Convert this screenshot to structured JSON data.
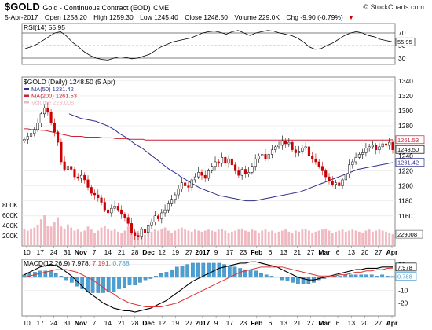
{
  "header": {
    "symbol": "$GOLD",
    "name": "Gold - Continuous Contract (EOD)",
    "exchange": "CME",
    "date": "5-Apr-2017",
    "open": "Open 1258.20",
    "high": "High 1259.30",
    "low": "Low 1245.40",
    "close": "Close 1248.50",
    "volume": "Volume 229.0K",
    "chg": "Chg -9.90 (-0.79%)",
    "chg_arrow": "▼",
    "logo": "© StockCharts.com"
  },
  "colors": {
    "up": "#22aa22",
    "down": "#cc0000",
    "ma50": "#2e2e8f",
    "ma200": "#cc2233",
    "volume": "#f0b8c0",
    "histogram": "#4a9fd4",
    "macd": "#000000",
    "signal": "#dd3333",
    "rsi": "#000000"
  },
  "chart_data": [
    {
      "type": "line",
      "title": "RSI(14) 55.95",
      "y_ticks": [
        30,
        50,
        70
      ],
      "ylim": [
        20,
        85
      ],
      "current_value_label": "55.95",
      "x_index_start": 0,
      "values": [
        45,
        48,
        52,
        58,
        64,
        70,
        72,
        65,
        55,
        48,
        40,
        34,
        30,
        28,
        27,
        30,
        32,
        31,
        29,
        30,
        33,
        36,
        42,
        48,
        52,
        56,
        58,
        60,
        62,
        66,
        70,
        72,
        73,
        71,
        68,
        72,
        74,
        70,
        66,
        70,
        72,
        74,
        73,
        70,
        68,
        66,
        62,
        56,
        48,
        44,
        45,
        50,
        54,
        60,
        66,
        70,
        72,
        70,
        66,
        64,
        60,
        58,
        56
      ]
    },
    {
      "type": "candlestick",
      "title": "$GOLD (Daily) 1248.50 (5 Apr)",
      "legend": [
        {
          "label": "MA(50) 1231.42",
          "color": "#2e2e8f"
        },
        {
          "label": "MA(200) 1261.53",
          "color": "#cc2233"
        },
        {
          "label": "Volume 229,008",
          "color": "#f0b8c0"
        }
      ],
      "y_ticks": [
        1160,
        1180,
        1200,
        1220,
        1240,
        1260,
        1280,
        1300,
        1320,
        1340
      ],
      "ylim": [
        1120,
        1345
      ],
      "price_tags": [
        {
          "label": "1261.53",
          "value": 1261.53,
          "color": "#cc2233"
        },
        {
          "label": "1248.50",
          "value": 1248.5,
          "color": "#000000"
        },
        {
          "label": "1231.42",
          "value": 1231.42,
          "color": "#2e2e8f"
        }
      ],
      "volume_ticks": [
        "800K",
        "600K",
        "400K",
        "200K"
      ],
      "volume_tick_values": [
        800,
        600,
        400,
        200
      ],
      "volume_current_label": "229008",
      "volume_max": 1000,
      "closes": [
        1262,
        1266,
        1270,
        1275,
        1284,
        1296,
        1304,
        1298,
        1284,
        1272,
        1258,
        1232,
        1222,
        1226,
        1222,
        1212,
        1210,
        1214,
        1208,
        1198,
        1190,
        1188,
        1184,
        1178,
        1168,
        1164,
        1170,
        1173,
        1168,
        1162,
        1158,
        1150,
        1138,
        1134,
        1133,
        1142,
        1138,
        1148,
        1152,
        1160,
        1156,
        1164,
        1168,
        1176,
        1182,
        1188,
        1196,
        1204,
        1200,
        1198,
        1208,
        1212,
        1218,
        1214,
        1210,
        1220,
        1226,
        1232,
        1230,
        1238,
        1230,
        1236,
        1228,
        1220,
        1214,
        1222,
        1216,
        1218,
        1226,
        1236,
        1240,
        1242,
        1236,
        1242,
        1248,
        1252,
        1254,
        1260,
        1256,
        1258,
        1248,
        1244,
        1246,
        1250,
        1252,
        1240,
        1236,
        1232,
        1226,
        1220,
        1212,
        1206,
        1202,
        1204,
        1200,
        1208,
        1216,
        1228,
        1232,
        1238,
        1242,
        1244,
        1250,
        1252,
        1254,
        1248,
        1252,
        1256,
        1254,
        1258,
        1248
      ],
      "ma50": [
        1296,
        1294,
        1292,
        1290,
        1289,
        1288,
        1287,
        1286,
        1284,
        1282,
        1280,
        1277,
        1274,
        1270,
        1267,
        1264,
        1260,
        1256,
        1253,
        1250,
        1246,
        1242,
        1238,
        1234,
        1230,
        1226,
        1222,
        1219,
        1216,
        1212,
        1209,
        1206,
        1203,
        1200,
        1197,
        1195,
        1193,
        1191,
        1189,
        1187,
        1186,
        1185,
        1184,
        1183,
        1182,
        1181,
        1180,
        1180,
        1180,
        1181,
        1182,
        1183,
        1184,
        1185,
        1186,
        1187,
        1188,
        1189,
        1190,
        1191,
        1192,
        1194,
        1196,
        1198,
        1200,
        1202,
        1204,
        1206,
        1208,
        1210,
        1212,
        1214,
        1216,
        1218,
        1220,
        1222,
        1223,
        1224,
        1225,
        1226,
        1227,
        1228,
        1229,
        1230,
        1231
      ],
      "ma200": [
        1276,
        1276,
        1275,
        1275,
        1275,
        1274,
        1274,
        1273,
        1272,
        1271,
        1270,
        1269,
        1268,
        1267,
        1266,
        1266,
        1266,
        1266,
        1265,
        1265,
        1265,
        1265,
        1265,
        1264,
        1264,
        1264,
        1264,
        1263,
        1263,
        1263,
        1263,
        1262,
        1262,
        1262,
        1262,
        1262,
        1261,
        1261,
        1261,
        1261,
        1261,
        1261,
        1261,
        1261,
        1261,
        1261,
        1261,
        1261,
        1261,
        1261,
        1261,
        1261,
        1261,
        1261,
        1261,
        1261,
        1261,
        1261,
        1261,
        1261,
        1261,
        1261,
        1261,
        1261,
        1261,
        1261,
        1261,
        1261,
        1261,
        1261,
        1261,
        1261,
        1261,
        1261,
        1261,
        1261,
        1261,
        1261,
        1261,
        1261,
        1261,
        1261,
        1261,
        1261,
        1261,
        1261,
        1261,
        1261,
        1261,
        1261,
        1261,
        1261,
        1261,
        1261,
        1261,
        1261,
        1261,
        1261,
        1261,
        1261,
        1261,
        1261,
        1261,
        1261,
        1261,
        1261,
        1261,
        1261,
        1261,
        1261.53
      ],
      "volume": [
        330,
        300,
        340,
        360,
        420,
        520,
        600,
        400,
        380,
        460,
        560,
        380,
        340,
        420,
        360,
        300,
        320,
        280,
        300,
        380,
        320,
        260,
        300,
        360,
        400,
        340,
        300,
        320,
        280,
        260,
        300,
        380,
        320,
        300,
        260,
        200,
        220,
        300,
        280,
        320,
        300,
        340,
        360,
        300,
        260,
        300,
        340,
        360,
        320,
        300,
        280,
        320,
        300,
        280,
        300,
        320,
        300,
        280,
        320,
        340,
        300,
        260,
        280,
        300,
        320,
        340,
        300,
        280,
        320,
        300,
        260,
        300,
        320,
        280,
        300,
        260,
        280,
        300,
        320,
        280,
        260,
        300,
        280,
        320,
        340,
        300,
        260,
        280,
        300,
        320,
        340,
        300,
        260,
        280,
        300,
        320,
        280,
        300,
        320,
        300,
        280,
        260,
        300,
        320,
        280,
        300,
        320,
        300,
        280,
        260,
        229
      ]
    },
    {
      "type": "bar",
      "categories": [
        "10",
        "17",
        "24",
        "31",
        "Nov",
        "7",
        "14",
        "21",
        "28",
        "Dec",
        "12",
        "19",
        "27",
        "2017",
        "9",
        "17",
        "23",
        "Feb",
        "6",
        "13",
        "21",
        "27",
        "Mar",
        "6",
        "13",
        "20",
        "27",
        "Apr"
      ],
      "title": "MACD(12,26,9) 7.978, 7.191, 0.788",
      "legend": [
        {
          "label": "MACD(12,26,9) 7.978,",
          "color": "#000000"
        },
        {
          "label": "7.191,",
          "color": "#dd3333"
        },
        {
          "label": "0.788",
          "color": "#4a9fd4"
        }
      ],
      "y_ticks": [
        -20,
        -10,
        0,
        10
      ],
      "ylim": [
        -30,
        14
      ],
      "tags": [
        {
          "label": "7.978",
          "value": 7.978,
          "color": "#000000"
        },
        {
          "label": "0.788",
          "value": 0.788,
          "color": "#4a9fd4"
        }
      ],
      "macd": [
        2,
        4,
        6,
        8,
        9,
        10,
        9,
        7,
        4,
        1,
        -3,
        -7,
        -11,
        -14,
        -17,
        -20,
        -22,
        -24,
        -25,
        -26,
        -26,
        -27,
        -26,
        -25,
        -24,
        -22,
        -20,
        -18,
        -15,
        -12,
        -9,
        -6,
        -3,
        -1,
        1,
        3,
        5,
        7,
        8,
        9,
        10,
        11,
        11,
        12,
        12,
        11,
        10,
        9,
        8,
        6,
        4,
        2,
        0,
        -1,
        -2,
        -2,
        -1,
        0,
        1,
        2,
        3,
        4,
        5,
        6,
        6,
        7,
        7,
        7,
        8,
        8,
        8
      ],
      "signal": [
        0,
        1,
        2,
        3,
        4,
        5,
        6,
        6,
        6,
        5,
        4,
        2,
        0,
        -2,
        -5,
        -8,
        -11,
        -13,
        -16,
        -18,
        -20,
        -21,
        -22,
        -23,
        -23,
        -23,
        -23,
        -22,
        -21,
        -20,
        -18,
        -16,
        -14,
        -12,
        -10,
        -8,
        -6,
        -4,
        -2,
        0,
        2,
        4,
        5,
        6,
        7,
        8,
        8,
        8,
        8,
        8,
        7,
        6,
        5,
        4,
        3,
        2,
        1,
        1,
        1,
        1,
        2,
        2,
        3,
        4,
        4,
        5,
        5,
        6,
        6,
        7,
        7.191
      ],
      "histogram": [
        2,
        3,
        4,
        5,
        5,
        5,
        3,
        1,
        -2,
        -4,
        -7,
        -9,
        -11,
        -12,
        -12,
        -12,
        -11,
        -11,
        -9,
        -8,
        -6,
        -6,
        -4,
        -2,
        -1,
        1,
        3,
        4,
        6,
        8,
        9,
        10,
        11,
        11,
        11,
        11,
        11,
        11,
        10,
        9,
        8,
        7,
        6,
        6,
        5,
        3,
        2,
        1,
        0,
        -2,
        -3,
        -4,
        -5,
        -5,
        -5,
        -4,
        -2,
        -1,
        0,
        1,
        1,
        2,
        2,
        2,
        2,
        2,
        2,
        1,
        2,
        1,
        0.788
      ]
    }
  ]
}
